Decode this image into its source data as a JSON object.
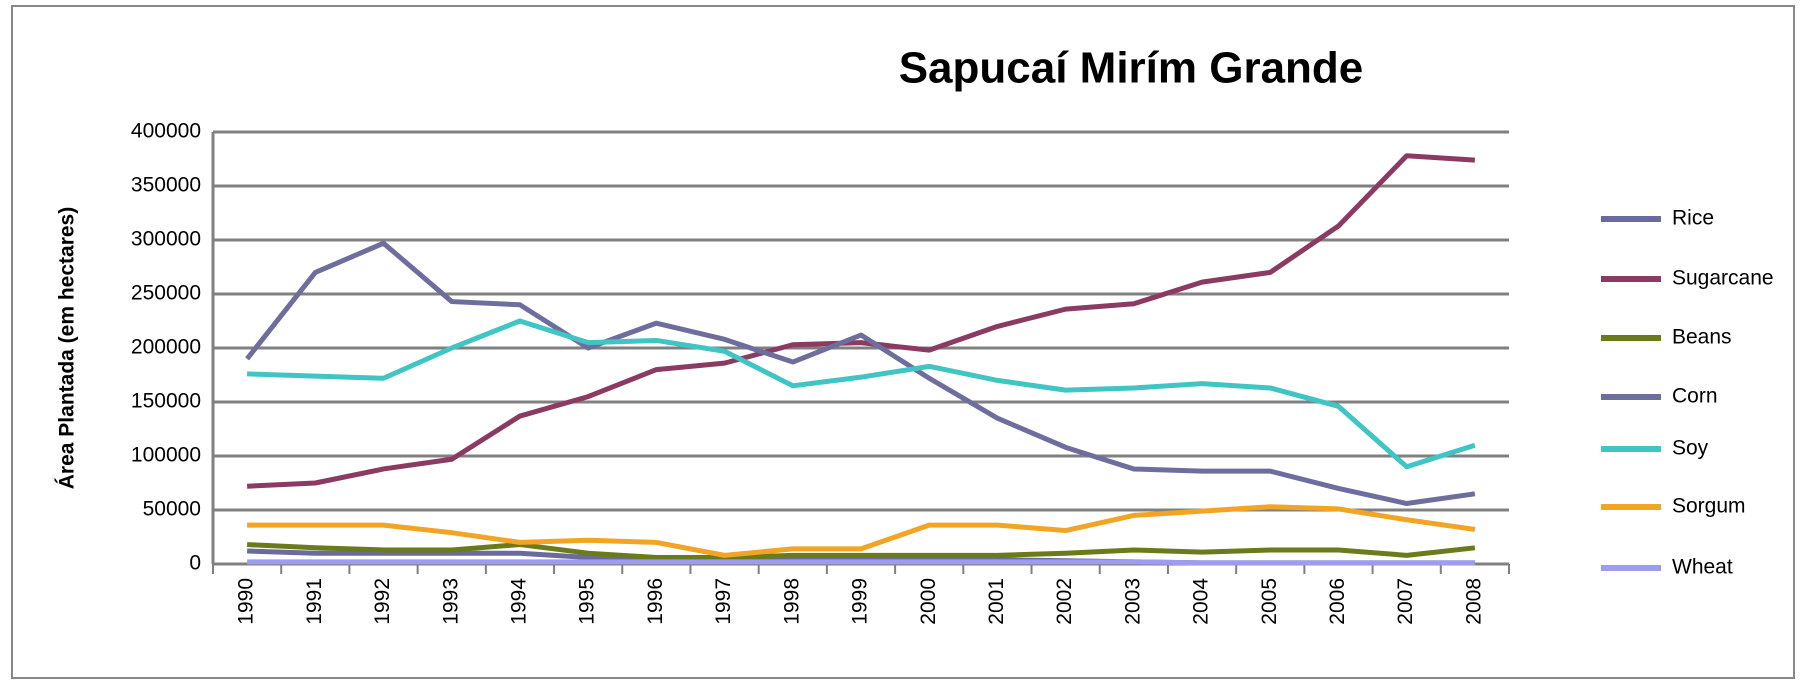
{
  "chart_data": {
    "type": "line",
    "title": "Sapucaí Mirím Grande",
    "y_label": "Área Plantada (em hectares)",
    "categories": [
      "1990",
      "1991",
      "1992",
      "1993",
      "1994",
      "1995",
      "1996",
      "1997",
      "1998",
      "1999",
      "2000",
      "2001",
      "2002",
      "2003",
      "2004",
      "2005",
      "2006",
      "2007",
      "2008"
    ],
    "series": [
      {
        "name": "Rice",
        "color": "#6a6a9c",
        "values": [
          12000,
          10000,
          10000,
          10000,
          10000,
          6000,
          5000,
          5000,
          4000,
          4000,
          4000,
          4000,
          3000,
          2000,
          1000,
          1000,
          1000,
          1000,
          1000
        ]
      },
      {
        "name": "Sugarcane",
        "color": "#8b3a62",
        "values": [
          72000,
          75000,
          88000,
          97000,
          137000,
          155000,
          180000,
          186000,
          203000,
          205000,
          198000,
          220000,
          236000,
          241000,
          261000,
          270000,
          313000,
          378000,
          374000
        ]
      },
      {
        "name": "Beans",
        "color": "#6b7a1a",
        "values": [
          18000,
          15000,
          13000,
          13000,
          18000,
          10000,
          6000,
          6000,
          8000,
          8000,
          8000,
          8000,
          10000,
          13000,
          11000,
          13000,
          13000,
          8000,
          15000
        ]
      },
      {
        "name": "Corn",
        "color": "#6e6e9e",
        "values": [
          190000,
          270000,
          297000,
          243000,
          240000,
          200000,
          223000,
          208000,
          187000,
          212000,
          172000,
          135000,
          108000,
          88000,
          86000,
          86000,
          70000,
          56000,
          65000
        ]
      },
      {
        "name": "Soy",
        "color": "#40c4c4",
        "values": [
          176000,
          174000,
          172000,
          200000,
          225000,
          205000,
          207000,
          197000,
          165000,
          173000,
          183000,
          170000,
          161000,
          163000,
          167000,
          163000,
          146000,
          90000,
          110000
        ]
      },
      {
        "name": "Sorgum",
        "color": "#f2a424",
        "values": [
          36000,
          36000,
          36000,
          29000,
          20000,
          22000,
          20000,
          8000,
          14000,
          14000,
          36000,
          36000,
          31000,
          45000,
          49000,
          53000,
          51000,
          41000,
          32000
        ]
      },
      {
        "name": "Wheat",
        "color": "#9c9cf0",
        "values": [
          2000,
          2000,
          2000,
          2000,
          2000,
          2000,
          2000,
          2000,
          2000,
          2000,
          2000,
          2000,
          2000,
          2000,
          1000,
          1000,
          1000,
          1000,
          1000
        ]
      }
    ],
    "ylim": [
      0,
      400000
    ],
    "yticks": [
      0,
      50000,
      100000,
      150000,
      200000,
      250000,
      300000,
      350000,
      400000
    ],
    "grid": true,
    "legend": "right"
  }
}
